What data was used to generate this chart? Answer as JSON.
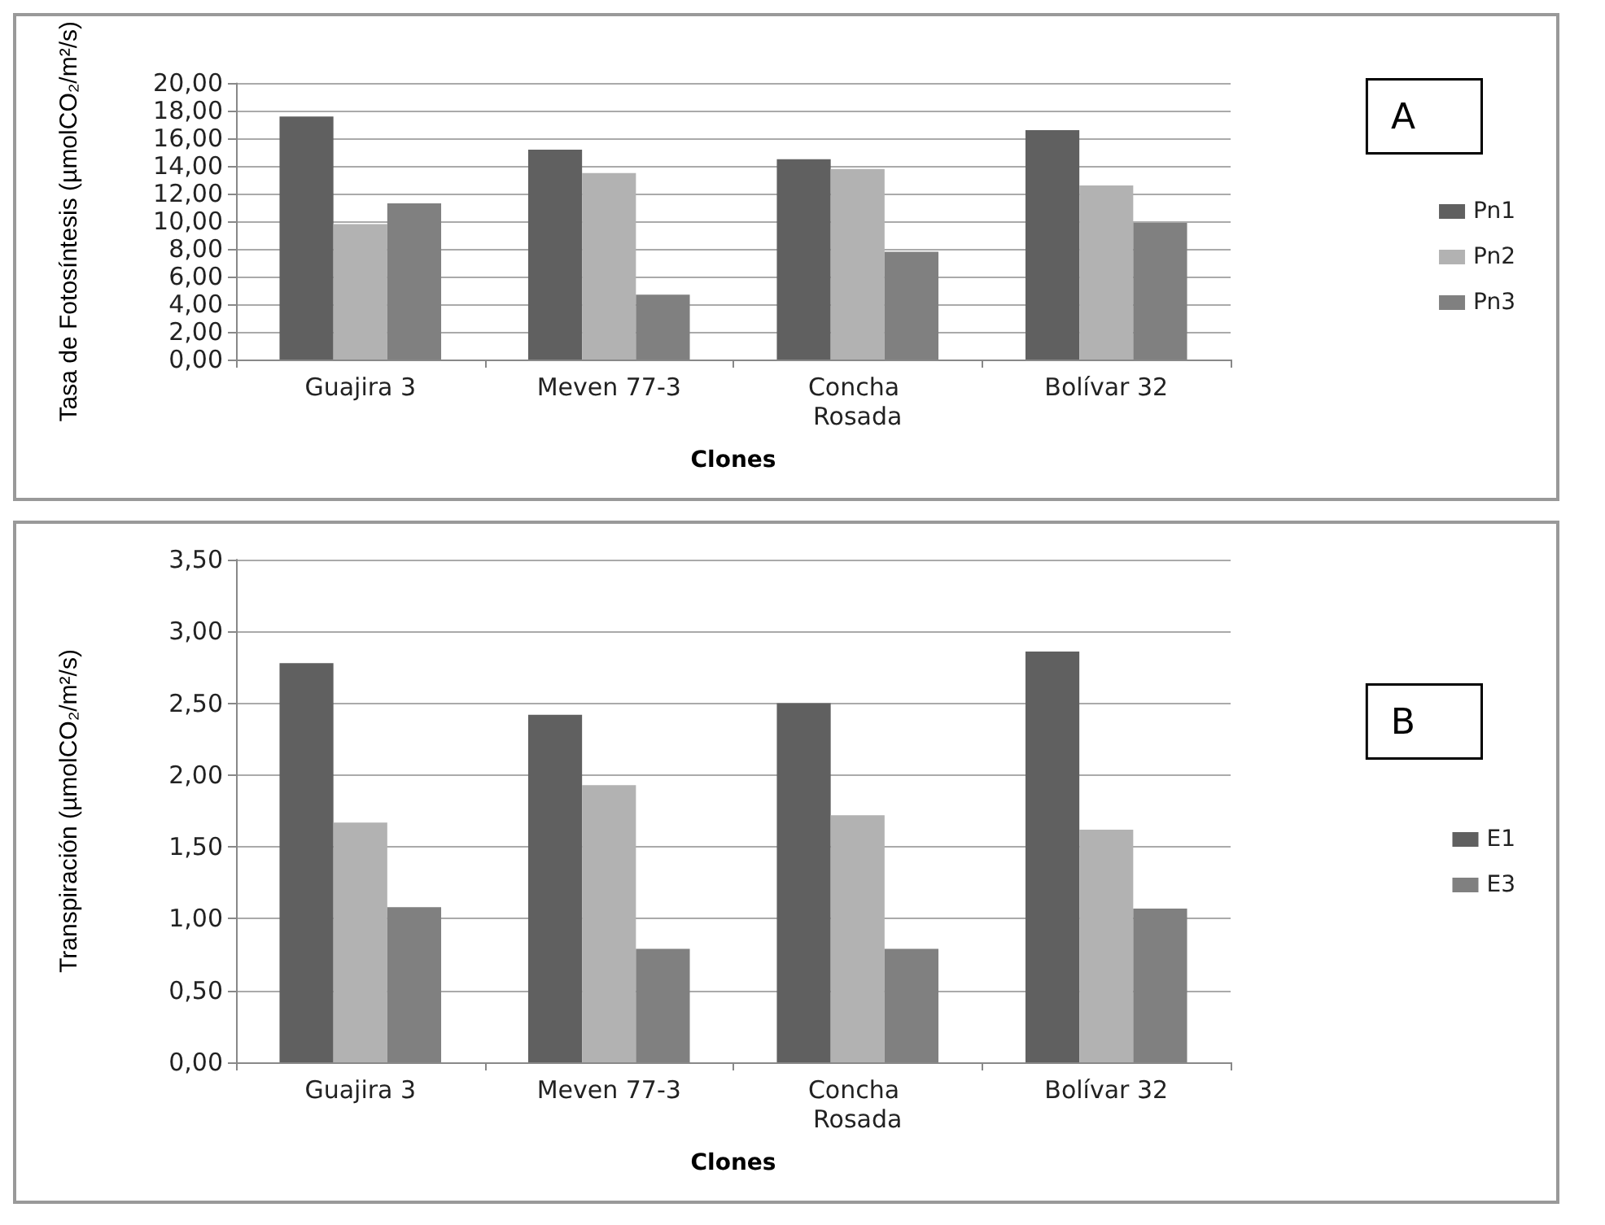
{
  "chart_data": [
    {
      "type": "bar",
      "xlabel": "Clones",
      "ylabel": "Tasa de Fotosíntesis (µmolCO₂/m²/s)",
      "categories": [
        "Guajira 3",
        "Meven 77-3",
        "Concha Rosada",
        "Bolívar 32"
      ],
      "series": [
        {
          "name": "Pn1",
          "color": "#606060",
          "values": [
            17.6,
            15.2,
            14.5,
            16.6
          ]
        },
        {
          "name": "Pn2",
          "color": "#b2b2b2",
          "values": [
            9.8,
            13.5,
            13.8,
            12.6
          ]
        },
        {
          "name": "Pn3",
          "color": "#808080",
          "values": [
            11.3,
            4.7,
            7.8,
            9.9
          ]
        }
      ],
      "ylim": [
        0,
        20
      ],
      "yticks": [
        {
          "value": 0,
          "label": "0,00"
        },
        {
          "value": 2,
          "label": "2,00"
        },
        {
          "value": 4,
          "label": "4,00"
        },
        {
          "value": 6,
          "label": "6,00"
        },
        {
          "value": 8,
          "label": "8,00"
        },
        {
          "value": 10,
          "label": "10,00"
        },
        {
          "value": 12,
          "label": "12,00"
        },
        {
          "value": 14,
          "label": "14,00"
        },
        {
          "value": 16,
          "label": "16,00"
        },
        {
          "value": 18,
          "label": "18,00"
        },
        {
          "value": 20,
          "label": "20,00"
        }
      ],
      "grid": "y",
      "legend": "right",
      "annotations": [
        "A"
      ]
    },
    {
      "type": "bar",
      "xlabel": "Clones",
      "ylabel": "Transpiración (µmolCO₂/m²/s)",
      "categories": [
        "Guajira 3",
        "Meven 77-3",
        "Concha Rosada",
        "Bolívar 32"
      ],
      "series": [
        {
          "name": "E1",
          "color": "#606060",
          "values": [
            2.78,
            2.42,
            2.5,
            2.86
          ]
        },
        {
          "color": "#b2b2b2",
          "values": [
            1.67,
            1.93,
            1.72,
            1.62
          ]
        },
        {
          "name": "E3",
          "color": "#808080",
          "values": [
            1.08,
            0.79,
            0.79,
            1.07
          ]
        }
      ],
      "ylim": [
        0,
        3.5
      ],
      "yticks": [
        {
          "value": 0,
          "label": "0,00"
        },
        {
          "value": 0.5,
          "label": "0,50"
        },
        {
          "value": 1,
          "label": "1,00"
        },
        {
          "value": 1.5,
          "label": "1,50"
        },
        {
          "value": 2,
          "label": "2,00"
        },
        {
          "value": 2.5,
          "label": "2,50"
        },
        {
          "value": 3,
          "label": "3,00"
        },
        {
          "value": 3.5,
          "label": "3,50"
        }
      ],
      "grid": "y",
      "legend": "right",
      "annotations": [
        "B"
      ]
    }
  ]
}
